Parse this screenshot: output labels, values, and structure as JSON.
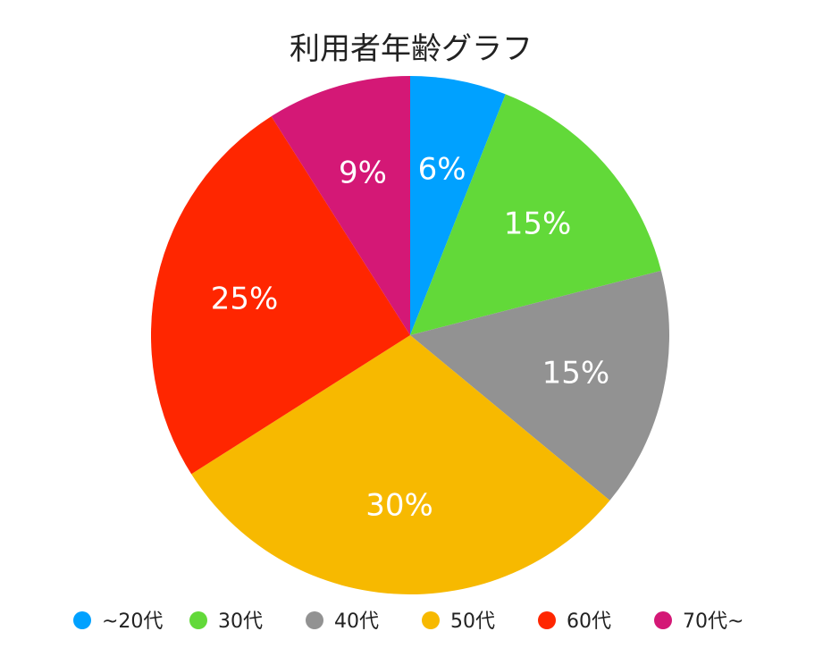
{
  "chart_data": {
    "type": "pie",
    "title": "利用者年齢グラフ",
    "legend_position": "bottom",
    "slices": [
      {
        "label": "~20代",
        "value": 6,
        "value_label": "6%",
        "color": "#00A1FF"
      },
      {
        "label": "30代",
        "value": 15,
        "value_label": "15%",
        "color": "#62D939"
      },
      {
        "label": "40代",
        "value": 15,
        "value_label": "15%",
        "color": "#929292"
      },
      {
        "label": "50代",
        "value": 30,
        "value_label": "30%",
        "color": "#F7B900"
      },
      {
        "label": "60代",
        "value": 25,
        "value_label": "25%",
        "color": "#FF2600"
      },
      {
        "label": "70代~",
        "value": 9,
        "value_label": "9%",
        "color": "#D41876"
      }
    ]
  }
}
